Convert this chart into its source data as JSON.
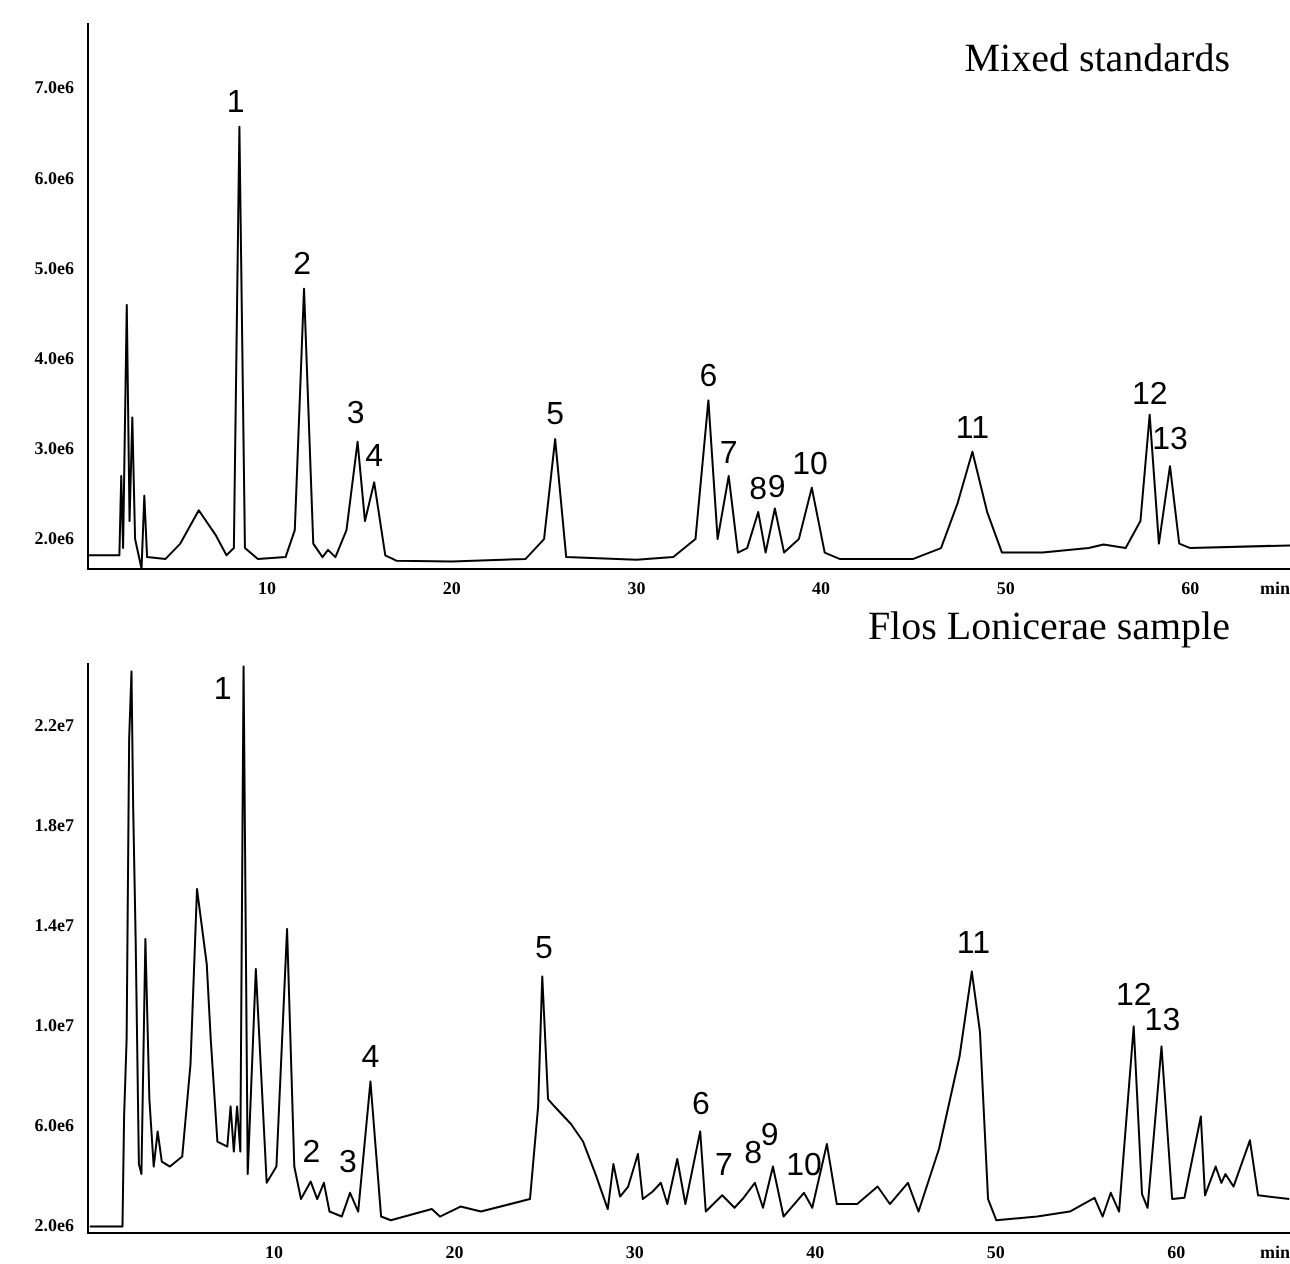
{
  "chart_data": [
    {
      "type": "line",
      "title": "Mixed standards",
      "xlabel": "min",
      "xlim": [
        0.3,
        65.4
      ],
      "xticks": [
        10,
        20,
        30,
        40,
        50,
        60
      ],
      "ylim": [
        1670000.0,
        7720000.0
      ],
      "yticks": [
        {
          "value": 2000000.0,
          "label": "2.0e6"
        },
        {
          "value": 3000000.0,
          "label": "3.0e6"
        },
        {
          "value": 4000000.0,
          "label": "4.0e6"
        },
        {
          "value": 5000000.0,
          "label": "5.0e6"
        },
        {
          "value": 6000000.0,
          "label": "6.0e6"
        },
        {
          "value": 7000000.0,
          "label": "7.0e6"
        }
      ],
      "grid": false,
      "legend": false,
      "marker": "none",
      "line_style": "solid",
      "series": [
        {
          "color": "#000000",
          "x": [
            0.3,
            2.0,
            2.1,
            2.2,
            2.4,
            2.55,
            2.7,
            2.85,
            3.2,
            3.35,
            3.5,
            4.5,
            5.3,
            6.3,
            7.2,
            7.8,
            8.2,
            8.5,
            8.8,
            9.5,
            11.0,
            11.5,
            12.0,
            12.5,
            13.0,
            13.3,
            13.7,
            14.3,
            14.9,
            15.3,
            15.8,
            16.4,
            17,
            20,
            24,
            25.0,
            25.6,
            26.2,
            30,
            32,
            33.2,
            33.9,
            34.4,
            35.0,
            35.5,
            36.0,
            36.6,
            37.0,
            37.5,
            38.0,
            38.8,
            39.5,
            40.2,
            41,
            45,
            46.5,
            47.4,
            48.2,
            49.0,
            49.8,
            52,
            54.5,
            55.3,
            56.5,
            57.3,
            57.8,
            58.3,
            58.9,
            59.4,
            60,
            65.4
          ],
          "values": [
            1820000.0,
            1820000.0,
            2700000.0,
            1900000.0,
            4600000.0,
            2200000.0,
            3350000.0,
            2000000.0,
            1670000.0,
            2480000.0,
            1800000.0,
            1780000.0,
            1950000.0,
            2320000.0,
            2050000.0,
            1820000.0,
            1900000.0,
            6580000.0,
            1900000.0,
            1780000.0,
            1800000.0,
            2100000.0,
            4780000.0,
            1950000.0,
            1800000.0,
            1880000.0,
            1800000.0,
            2100000.0,
            3080000.0,
            2200000.0,
            2630000.0,
            1820000.0,
            1760000.0,
            1750000.0,
            1780000.0,
            2000000.0,
            3110000.0,
            1800000.0,
            1770000.0,
            1800000.0,
            2000000.0,
            3540000.0,
            2000000.0,
            2700000.0,
            1850000.0,
            1900000.0,
            2300000.0,
            1850000.0,
            2340000.0,
            1850000.0,
            2000000.0,
            2570000.0,
            1850000.0,
            1780000.0,
            1780000.0,
            1900000.0,
            2400000.0,
            2970000.0,
            2300000.0,
            1850000.0,
            1850000.0,
            1900000.0,
            1940000.0,
            1900000.0,
            2200000.0,
            3380000.0,
            1950000.0,
            2810000.0,
            1950000.0,
            1900000.0,
            1930000.0
          ]
        }
      ],
      "annotations": [
        {
          "text": "1",
          "x": 8.3,
          "y": 6620000.0
        },
        {
          "text": "2",
          "x": 11.9,
          "y": 4820000.0
        },
        {
          "text": "3",
          "x": 14.8,
          "y": 3160000.0
        },
        {
          "text": "4",
          "x": 15.8,
          "y": 2690000.0
        },
        {
          "text": "5",
          "x": 25.6,
          "y": 3150000.0
        },
        {
          "text": "6",
          "x": 33.9,
          "y": 3580000.0
        },
        {
          "text": "7",
          "x": 35.0,
          "y": 2720000.0
        },
        {
          "text": "8",
          "x": 36.6,
          "y": 2320000.0
        },
        {
          "text": "9",
          "x": 37.6,
          "y": 2340000.0
        },
        {
          "text": "10",
          "x": 39.4,
          "y": 2600000.0
        },
        {
          "text": "11",
          "x": 48.2,
          "y": 3000000.0
        },
        {
          "text": "12",
          "x": 57.8,
          "y": 3380000.0
        },
        {
          "text": "13",
          "x": 58.9,
          "y": 2880000.0
        }
      ]
    },
    {
      "type": "line",
      "title": "Flos Lonicerae sample",
      "xlabel": "min",
      "xlim": [
        -0.3,
        66.3
      ],
      "xticks": [
        10,
        20,
        30,
        40,
        50,
        60
      ],
      "ylim": [
        1750000.0,
        24500000.0
      ],
      "yticks": [
        {
          "value": 2000000.0,
          "label": "2.0e6"
        },
        {
          "value": 6000000.0,
          "label": "6.0e6"
        },
        {
          "value": 10000000.0,
          "label": "1.0e7"
        },
        {
          "value": 14000000.0,
          "label": "1.4e7"
        },
        {
          "value": 18000000.0,
          "label": "1.8e7"
        },
        {
          "value": 22000000.0,
          "label": "2.2e7"
        }
      ],
      "grid": false,
      "legend": false,
      "marker": "none",
      "line_style": "solid",
      "series": [
        {
          "color": "#000000",
          "x": [
            -0.2,
            1.61,
            1.7,
            1.84,
            1.98,
            2.11,
            2.2,
            2.34,
            2.52,
            2.66,
            2.88,
            3.1,
            3.34,
            3.56,
            3.79,
            4.24,
            4.92,
            5.38,
            5.74,
            6.28,
            6.5,
            6.87,
            7.42,
            7.6,
            7.78,
            7.96,
            8.14,
            8.32,
            8.55,
            9.0,
            9.6,
            10.14,
            10.73,
            11.13,
            11.5,
            12.04,
            12.4,
            12.77,
            13.08,
            13.76,
            14.22,
            14.67,
            15.35,
            15.94,
            16.48,
            18.75,
            19.2,
            20.34,
            21.47,
            24.19,
            24.64,
            24.87,
            25.19,
            25.55,
            26.46,
            27.13,
            27.82,
            28.5,
            28.81,
            29.18,
            29.63,
            30.17,
            30.44,
            30.99,
            31.44,
            31.8,
            32.35,
            32.8,
            33.62,
            33.93,
            34.84,
            35.52,
            35.97,
            36.65,
            37.1,
            37.65,
            38.24,
            39.37,
            39.83,
            40.64,
            41.19,
            42.32,
            43.45,
            44.13,
            45.13,
            45.72,
            46.85,
            47.99,
            48.67,
            49.12,
            49.57,
            50.03,
            52.29,
            54.1,
            55.47,
            55.92,
            56.37,
            56.83,
            57.64,
            58.1,
            58.41,
            59.18,
            59.77,
            60.45,
            61.36,
            61.59,
            62.18,
            62.5,
            62.72,
            63.17,
            64.08,
            64.53,
            66.26
          ],
          "values": [
            2000000.0,
            2000000.0,
            6400000.0,
            9500000.0,
            21500000.0,
            24200000.0,
            18900000.0,
            13500000.0,
            4500000.0,
            4100000.0,
            13500000.0,
            7100000.0,
            4400000.0,
            5800000.0,
            4600000.0,
            4400000.0,
            4800000.0,
            8500000.0,
            15500000.0,
            12500000.0,
            9500000.0,
            5400000.0,
            5200000.0,
            6800000.0,
            5000000.0,
            6800000.0,
            5000000.0,
            24400000.0,
            4100000.0,
            12300000.0,
            3750000.0,
            4400000.0,
            13900000.0,
            4400000.0,
            3100000.0,
            3800000.0,
            3100000.0,
            3750000.0,
            2600000.0,
            2400000.0,
            3350000.0,
            2600000.0,
            7800000.0,
            2400000.0,
            2250000.0,
            2700000.0,
            2400000.0,
            2800000.0,
            2600000.0,
            3100000.0,
            6800000.0,
            12000000.0,
            7100000.0,
            6800000.0,
            6100000.0,
            5400000.0,
            4100000.0,
            2700000.0,
            4500000.0,
            3200000.0,
            3600000.0,
            4900000.0,
            3100000.0,
            3400000.0,
            3750000.0,
            2900000.0,
            4700000.0,
            2900000.0,
            5800000.0,
            2600000.0,
            3250000.0,
            2750000.0,
            3100000.0,
            3750000.0,
            2750000.0,
            4400000.0,
            2400000.0,
            3350000.0,
            2750000.0,
            5300000.0,
            2900000.0,
            2900000.0,
            3600000.0,
            2900000.0,
            3750000.0,
            2600000.0,
            5100000.0,
            8800000.0,
            12200000.0,
            9800000.0,
            3100000.0,
            2250000.0,
            2400000.0,
            2600000.0,
            3150000.0,
            2400000.0,
            3350000.0,
            2600000.0,
            10000000.0,
            3300000.0,
            2750000.0,
            9200000.0,
            3100000.0,
            3150000.0,
            6400000.0,
            3250000.0,
            4400000.0,
            3750000.0,
            4100000.0,
            3600000.0,
            5450000.0,
            3250000.0,
            3100000.0
          ]
        }
      ],
      "annotations": [
        {
          "text": "1",
          "x": 8.32,
          "y": 24400000.0
        },
        {
          "text": "2",
          "x": 12.08,
          "y": 4150000.0
        },
        {
          "text": "3",
          "x": 14.1,
          "y": 3750000.0
        },
        {
          "text": "4",
          "x": 15.35,
          "y": 7950000.0
        },
        {
          "text": "5",
          "x": 24.96,
          "y": 12300000.0
        },
        {
          "text": "6",
          "x": 33.66,
          "y": 6040000.0
        },
        {
          "text": "7",
          "x": 34.93,
          "y": 3600000.0
        },
        {
          "text": "8",
          "x": 36.56,
          "y": 4100000.0
        },
        {
          "text": "9",
          "x": 37.47,
          "y": 4800000.0
        },
        {
          "text": "10",
          "x": 39.37,
          "y": 3600000.0
        },
        {
          "text": "11",
          "x": 48.76,
          "y": 12500000.0
        },
        {
          "text": "12",
          "x": 57.64,
          "y": 10400000.0
        },
        {
          "text": "13",
          "x": 59.23,
          "y": 9400000.0
        }
      ]
    }
  ]
}
